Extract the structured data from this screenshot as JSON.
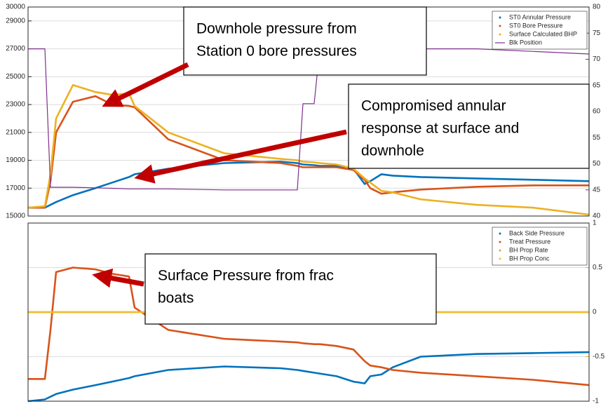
{
  "chart_data": [
    {
      "type": "line",
      "x": [
        0,
        3,
        4,
        5,
        8,
        12,
        15,
        18,
        19,
        25,
        35,
        45,
        48,
        49,
        51,
        52,
        55,
        58,
        60,
        61,
        63,
        65,
        70,
        80,
        90,
        100
      ],
      "xlim": [
        0,
        100
      ],
      "ylim": [
        15000,
        30000
      ],
      "yticks": [
        15000,
        17000,
        19000,
        21000,
        23000,
        25000,
        27000,
        29000,
        30000
      ],
      "y2lim": [
        40,
        80
      ],
      "y2ticks": [
        40,
        45,
        50,
        55,
        60,
        65,
        70,
        75,
        80
      ],
      "grid": true,
      "legend": "upper right",
      "series": [
        {
          "name": "ST0 Annular Pressure",
          "color": "#0072bd",
          "style": "dot",
          "values": [
            15600,
            15600,
            15800,
            16000,
            16500,
            17000,
            17400,
            17800,
            18000,
            18400,
            18800,
            18900,
            18800,
            18700,
            18650,
            18600,
            18600,
            18400,
            17300,
            17500,
            18000,
            17900,
            17800,
            17700,
            17600,
            17500
          ]
        },
        {
          "name": "ST0 Bore Pressure",
          "color": "#d95319",
          "style": "dot",
          "values": [
            15600,
            15600,
            17500,
            21000,
            23200,
            23600,
            23000,
            22900,
            22800,
            20500,
            19000,
            18800,
            18600,
            18500,
            18500,
            18500,
            18500,
            18300,
            17600,
            17000,
            16600,
            16700,
            16900,
            17100,
            17200,
            17200
          ]
        },
        {
          "name": "Surface Calculated BHP",
          "color": "#edb120",
          "style": "dot",
          "values": [
            15600,
            15700,
            18000,
            22000,
            24400,
            23900,
            23700,
            23800,
            22900,
            21000,
            19500,
            19100,
            19000,
            18900,
            18850,
            18800,
            18700,
            18400,
            17700,
            17400,
            16800,
            16700,
            16200,
            15800,
            15600,
            15100
          ]
        },
        {
          "name": "Blk Position",
          "color": "#7e2f8e",
          "style": "line",
          "axis": "y2",
          "values": [
            72,
            72,
            45.5,
            45.5,
            45.5,
            45.4,
            45.3,
            45.2,
            45.2,
            45.2,
            45,
            45,
            45,
            61.5,
            61.5,
            72,
            72,
            72,
            72,
            72,
            72,
            72,
            72,
            72,
            71.5,
            71
          ]
        }
      ]
    },
    {
      "type": "line",
      "x": [
        0,
        3,
        4,
        5,
        8,
        12,
        15,
        18,
        19,
        25,
        35,
        45,
        48,
        49,
        51,
        52,
        55,
        58,
        60,
        61,
        63,
        65,
        70,
        80,
        90,
        100
      ],
      "xlim": [
        0,
        100
      ],
      "y2lim": [
        -1,
        1
      ],
      "y2ticks": [
        -1,
        -0.5,
        0,
        0.5,
        1
      ],
      "grid": true,
      "legend": "upper right",
      "series": [
        {
          "name": "Back Side Pressure",
          "color": "#0072bd",
          "style": "dot",
          "axis": "y2",
          "values": [
            -1,
            -0.98,
            -0.95,
            -0.92,
            -0.87,
            -0.82,
            -0.78,
            -0.74,
            -0.72,
            -0.65,
            -0.61,
            -0.63,
            -0.65,
            -0.66,
            -0.68,
            -0.69,
            -0.72,
            -0.78,
            -0.8,
            -0.72,
            -0.7,
            -0.62,
            -0.5,
            -0.47,
            -0.46,
            -0.45
          ]
        },
        {
          "name": "Treat Pressure",
          "color": "#d95319",
          "style": "dot",
          "axis": "y2",
          "values": [
            -0.75,
            -0.75,
            -0.2,
            0.45,
            0.5,
            0.48,
            0.43,
            0.4,
            0.05,
            -0.2,
            -0.3,
            -0.33,
            -0.34,
            -0.35,
            -0.36,
            -0.36,
            -0.38,
            -0.42,
            -0.55,
            -0.6,
            -0.62,
            -0.65,
            -0.68,
            -0.72,
            -0.76,
            -0.82
          ]
        },
        {
          "name": "BH Prop Rate",
          "color": "#e8a33a",
          "style": "dot",
          "axis": "y2",
          "values": [
            0,
            0,
            0,
            0,
            0,
            0,
            0,
            0,
            0,
            0,
            0,
            0,
            0,
            0,
            0,
            0,
            0,
            0,
            0,
            0,
            0,
            0,
            0,
            0,
            0,
            0
          ]
        },
        {
          "name": "BH Prop Conc",
          "color": "#f2be2c",
          "style": "dot",
          "axis": "y2",
          "values": [
            0,
            0,
            0,
            0,
            0,
            0,
            0,
            0,
            0,
            0,
            0,
            0,
            0,
            0,
            0,
            0,
            0,
            0,
            0,
            0,
            0,
            0,
            0,
            0,
            0,
            0
          ]
        }
      ]
    }
  ],
  "annotations": [
    {
      "lines": [
        "Downhole pressure from",
        "Station 0 bore pressures"
      ]
    },
    {
      "lines": [
        "Compromised annular",
        "response at surface and",
        "downhole"
      ]
    },
    {
      "lines": [
        "Surface Pressure from frac",
        "boats"
      ]
    }
  ]
}
